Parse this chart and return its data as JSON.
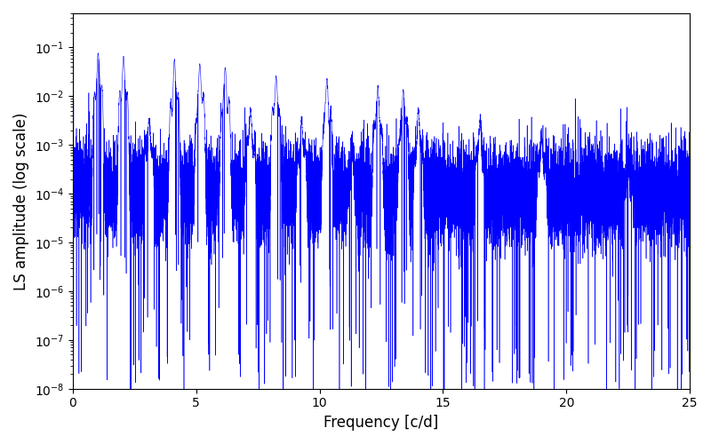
{
  "xlabel": "Frequency [c/d]",
  "ylabel": "LS amplitude (log scale)",
  "xlim": [
    0,
    25
  ],
  "ylim": [
    1e-08,
    0.5
  ],
  "line_color": "#0000ff",
  "line_width": 0.4,
  "figsize": [
    8.0,
    5.0
  ],
  "dpi": 100,
  "background_color": "#ffffff",
  "freq_max": 25.0,
  "n_points": 15000,
  "seed": 12345,
  "base_level_log": -4.0,
  "noise_std_log": 0.5,
  "peak_freqs": [
    1.03,
    2.06,
    3.09,
    4.12,
    5.15,
    6.18,
    7.21,
    8.24,
    9.27,
    10.3,
    11.33,
    12.36,
    13.39,
    14.0,
    16.5,
    19.0,
    22.5
  ],
  "peak_heights": [
    0.075,
    0.065,
    0.003,
    0.055,
    0.045,
    0.038,
    0.005,
    0.025,
    0.003,
    0.022,
    0.0005,
    0.015,
    0.013,
    0.005,
    0.003,
    0.0012,
    0.0004
  ],
  "peak_widths": [
    0.03,
    0.03,
    0.03,
    0.03,
    0.03,
    0.03,
    0.03,
    0.03,
    0.03,
    0.03,
    0.03,
    0.03,
    0.03,
    0.03,
    0.03,
    0.03,
    0.03
  ],
  "yticks": [
    1e-08,
    1e-07,
    1e-06,
    1e-05,
    0.0001,
    0.001,
    0.01,
    0.1
  ],
  "xticks": [
    0,
    5,
    10,
    15,
    20,
    25
  ],
  "n_dips": 200,
  "dip_factor_min": 1e-05,
  "dip_factor_max": 0.001
}
